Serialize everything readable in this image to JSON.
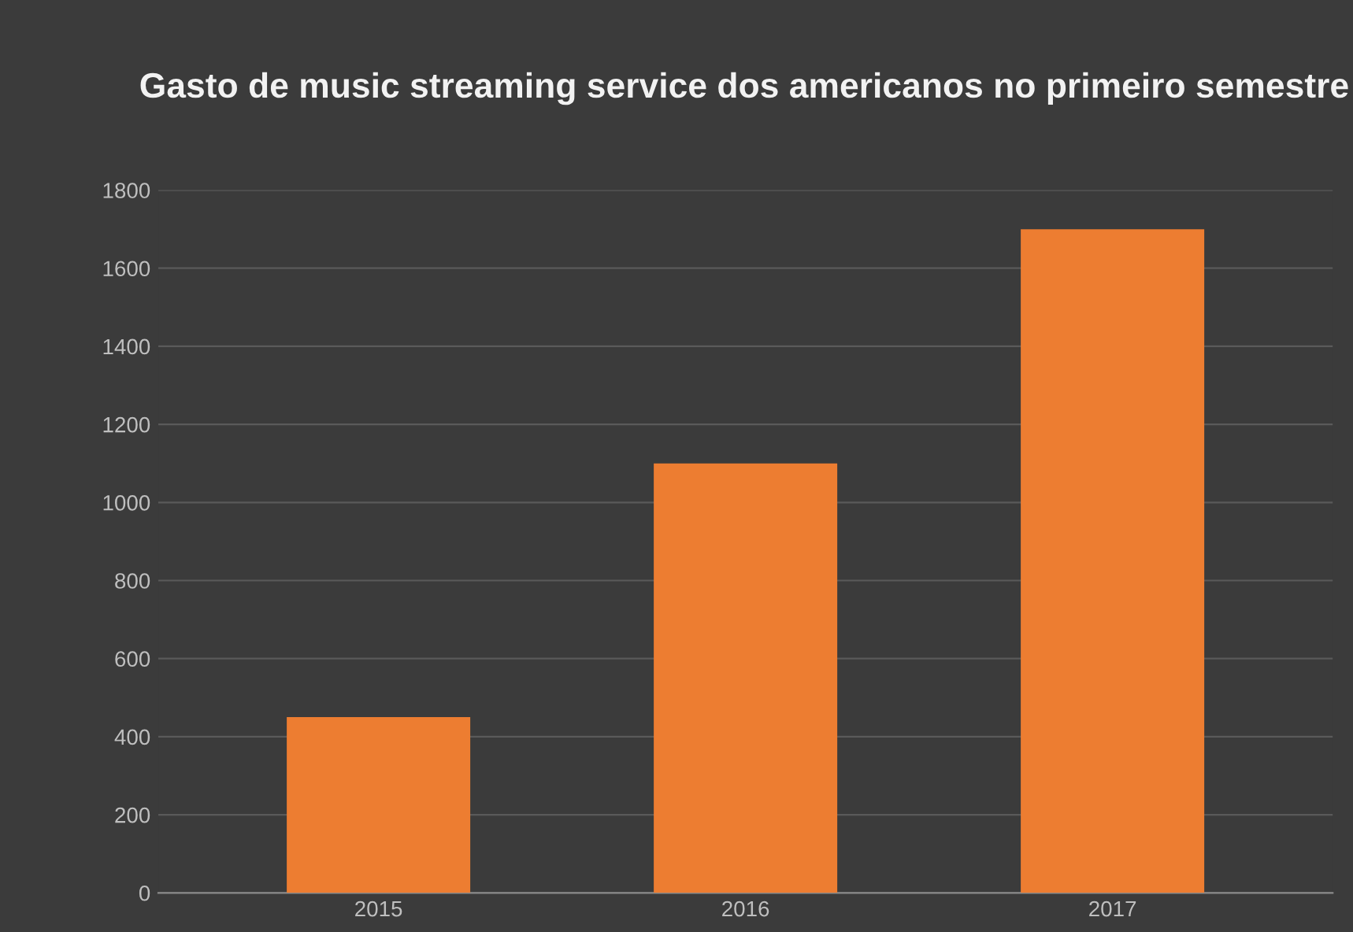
{
  "chart_data": {
    "type": "bar",
    "title": "Gasto de music streaming service dos americanos no primeiro semestre",
    "categories": [
      "2015",
      "2016",
      "2017"
    ],
    "values": [
      450,
      1100,
      1700
    ],
    "color": "#ed7d31",
    "ylim": [
      0,
      1800
    ],
    "yticks": [
      0,
      200,
      400,
      600,
      800,
      1000,
      1200,
      1400,
      1600,
      1800
    ],
    "grid": "y"
  }
}
